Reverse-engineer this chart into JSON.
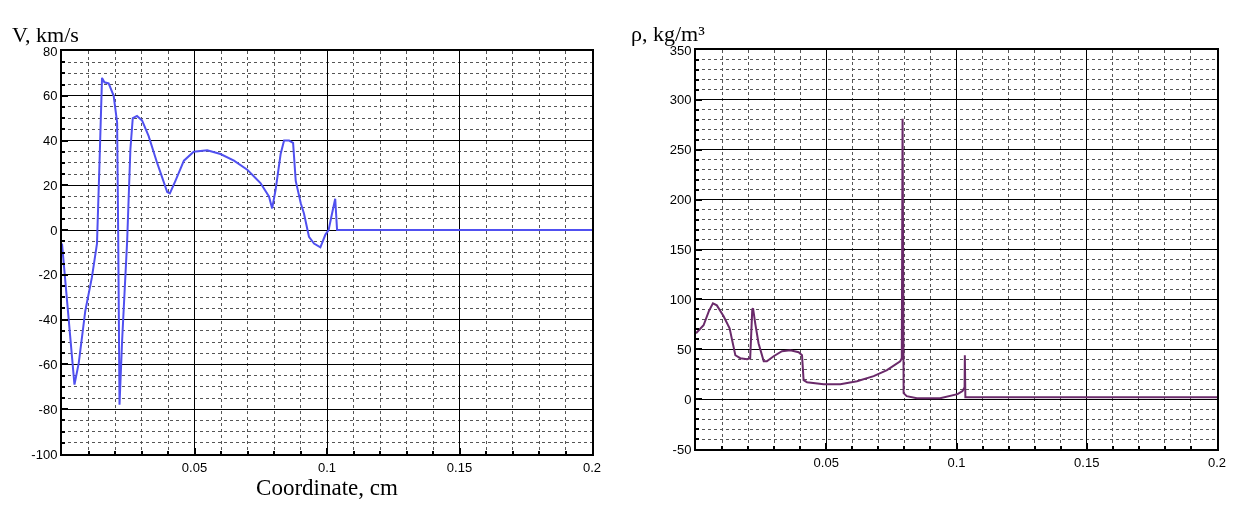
{
  "chart_data": [
    {
      "type": "line",
      "ylabel": "V, km/s",
      "xlabel": "Coordinate, cm",
      "xlim": [
        0,
        0.2
      ],
      "xticks": [
        0.05,
        0.1,
        0.15,
        0.2
      ],
      "ylim": [
        -100,
        80
      ],
      "yticks": [
        -100,
        -80,
        -60,
        -40,
        -20,
        0,
        20,
        40,
        60,
        80
      ],
      "grid": true,
      "series": [
        {
          "color": "#5050f0",
          "x": [
            0,
            0.0047,
            0.0063,
            0.0088,
            0.0113,
            0.0132,
            0.0141,
            0.0151,
            0.016,
            0.0176,
            0.0195,
            0.0208,
            0.0212,
            0.0217,
            0.0227,
            0.0246,
            0.0258,
            0.0267,
            0.0283,
            0.0302,
            0.0327,
            0.0359,
            0.0397,
            0.0407,
            0.0428,
            0.046,
            0.0497,
            0.0548,
            0.0598,
            0.0649,
            0.0699,
            0.0749,
            0.0781,
            0.0793,
            0.0806,
            0.0825,
            0.0838,
            0.0857,
            0.0872,
            0.0882,
            0.0901,
            0.0913,
            0.0932,
            0.0951,
            0.0975,
            0.0994,
            0.1006,
            0.1019,
            0.1031,
            0.1038,
            0.2
          ],
          "values": [
            -6,
            -69,
            -59.5,
            -36,
            -21,
            -6,
            28,
            68,
            66,
            65.5,
            60,
            48,
            -1.5,
            -78,
            -49,
            -4.5,
            36,
            50,
            51,
            49,
            42,
            30,
            17,
            16.4,
            22,
            31,
            35,
            35.7,
            34,
            31,
            27,
            21,
            15,
            9.7,
            18,
            34,
            40,
            40,
            39,
            22,
            12,
            7.4,
            -3,
            -6,
            -7.7,
            -2,
            0,
            7.4,
            14,
            0,
            0
          ]
        }
      ]
    },
    {
      "type": "line",
      "ylabel": "ρ, kg/m³",
      "xlim": [
        0,
        0.2
      ],
      "xticks": [
        0.05,
        0.1,
        0.15,
        0.2
      ],
      "ylim": [
        -50,
        350
      ],
      "yticks": [
        -50,
        0,
        50,
        100,
        150,
        200,
        250,
        300,
        350
      ],
      "grid": true,
      "series": [
        {
          "color": "#6a2a6a",
          "x": [
            0,
            0.0029,
            0.0049,
            0.0065,
            0.008,
            0.0106,
            0.0129,
            0.0151,
            0.017,
            0.0196,
            0.0208,
            0.0216,
            0.0219,
            0.0228,
            0.024,
            0.026,
            0.0272,
            0.0298,
            0.033,
            0.0362,
            0.0394,
            0.0407,
            0.0413,
            0.0426,
            0.049,
            0.0554,
            0.0618,
            0.0682,
            0.0733,
            0.0784,
            0.079,
            0.0793,
            0.0797,
            0.0809,
            0.0848,
            0.0937,
            0.1004,
            0.1023,
            0.1031,
            0.1032,
            0.1034,
            0.2
          ],
          "values": [
            66,
            74,
            88,
            96,
            94,
            83,
            71,
            44,
            41,
            40,
            41,
            90,
            91,
            75,
            56,
            38,
            38,
            43,
            48,
            49,
            47,
            44,
            19,
            17,
            15,
            15,
            18,
            23,
            29,
            38,
            41,
            281,
            6,
            3,
            1,
            1,
            5,
            8,
            12,
            44,
            2,
            2
          ]
        }
      ]
    }
  ]
}
